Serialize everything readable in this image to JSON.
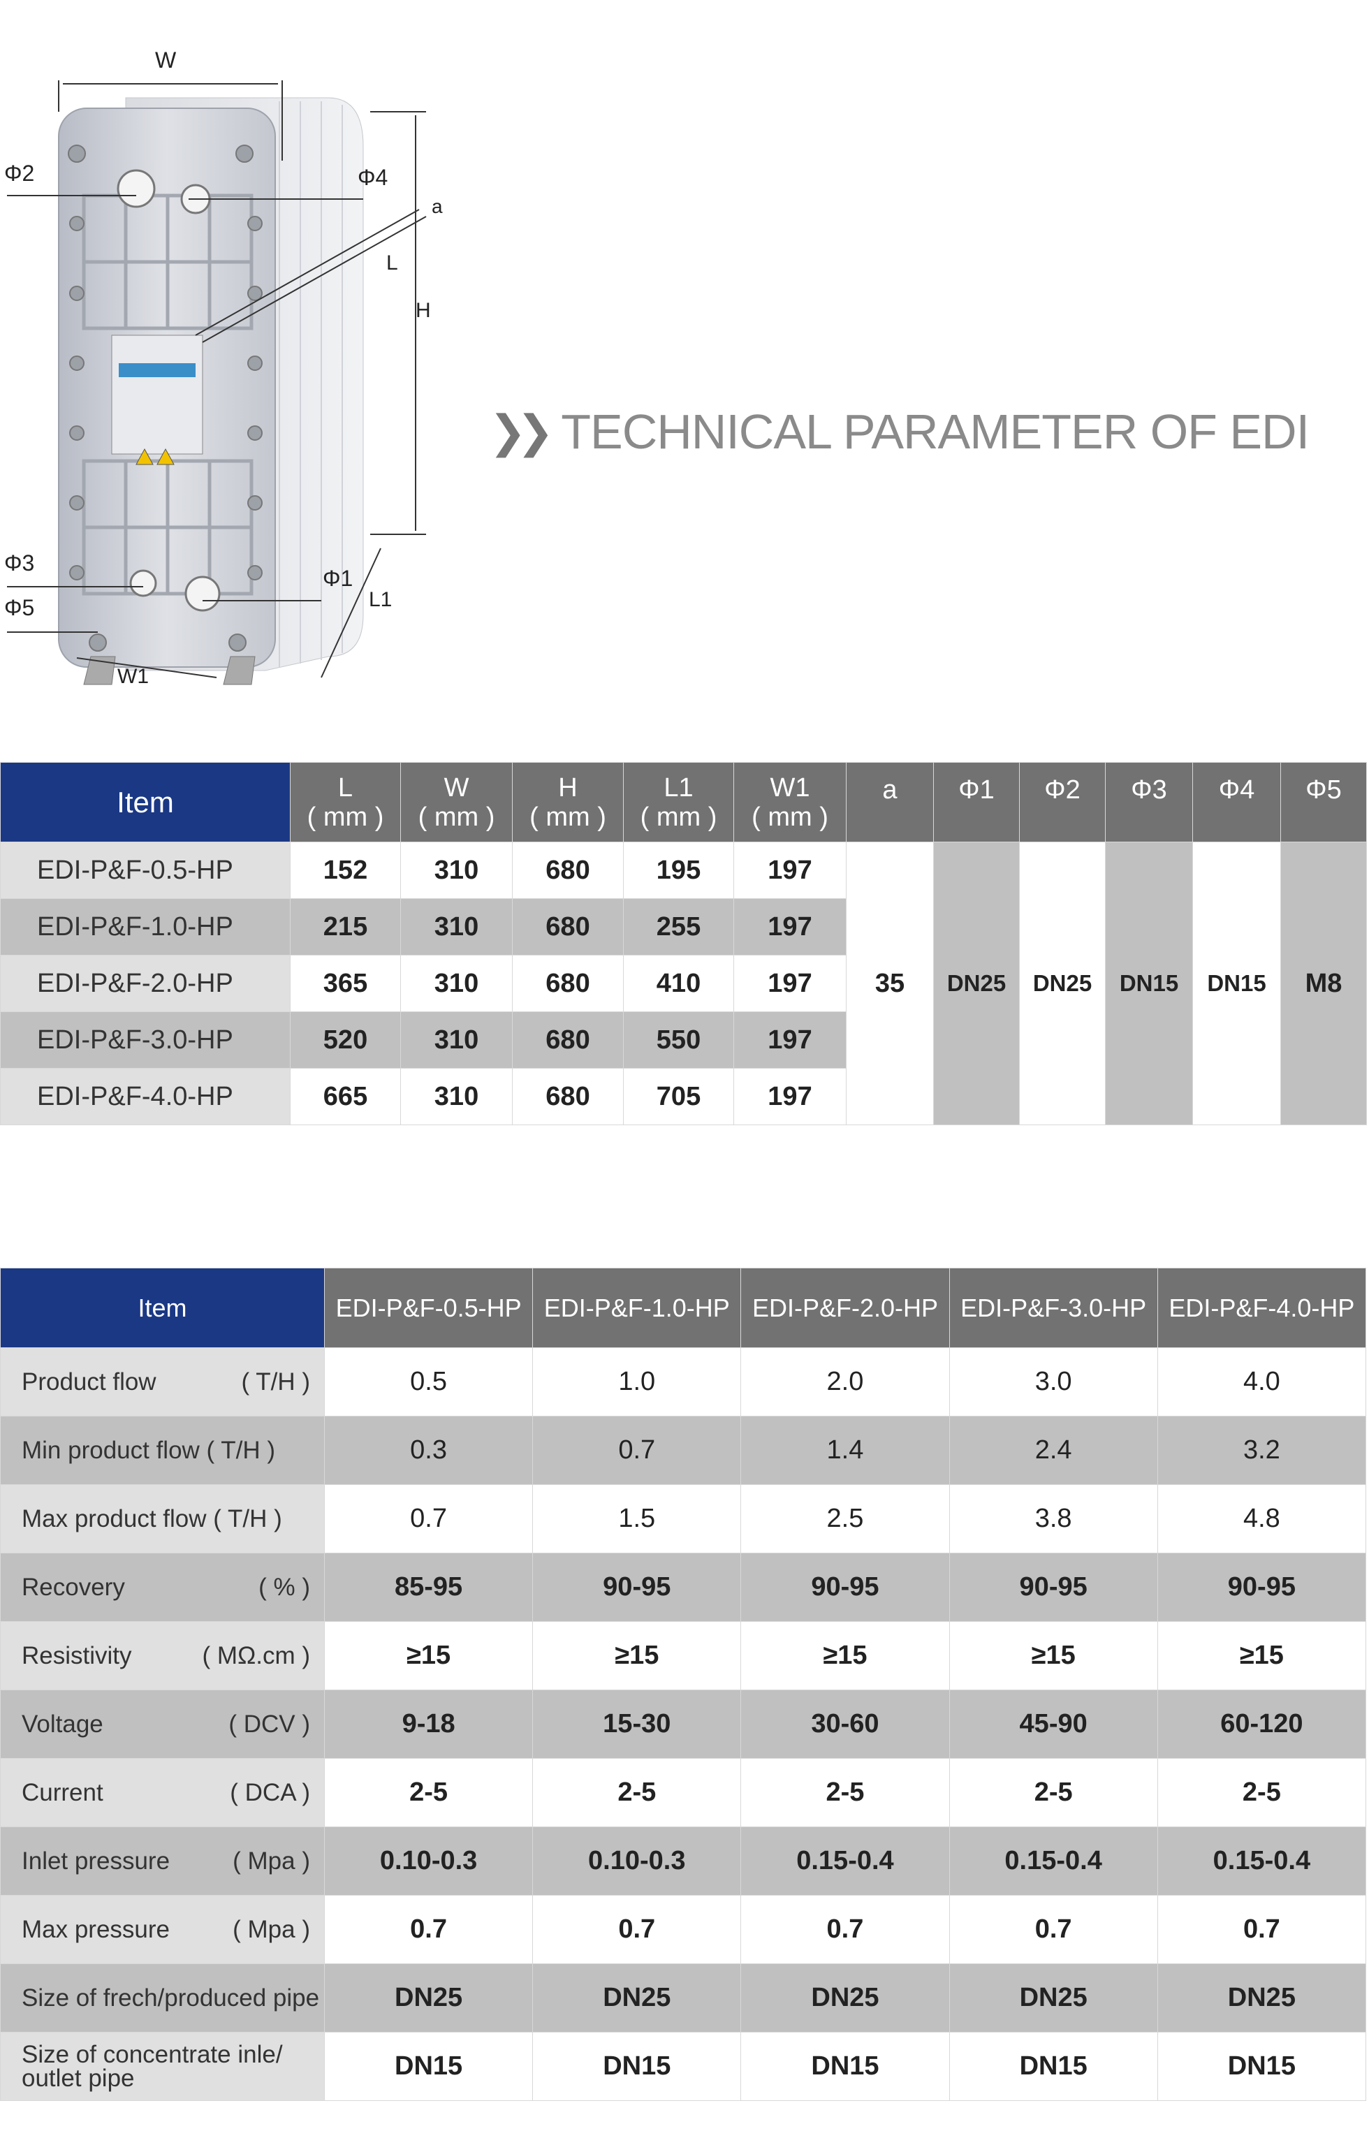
{
  "diagram": {
    "labels": {
      "W": "W",
      "phi2": "Φ2",
      "phi4": "Φ4",
      "a": "a",
      "L": "L",
      "H": "H",
      "phi3": "Φ3",
      "phi5": "Φ5",
      "phi1": "Φ1",
      "L1": "L1",
      "W1": "W1"
    }
  },
  "title": "TECHNICAL PARAMETER OF EDI",
  "dimensions_table": {
    "item_header": "Item",
    "headers": [
      {
        "name": "L",
        "unit": "( mm )"
      },
      {
        "name": "W",
        "unit": "( mm )"
      },
      {
        "name": "H",
        "unit": "( mm )"
      },
      {
        "name": "L1",
        "unit": "( mm )"
      },
      {
        "name": "W1",
        "unit": "( mm )"
      }
    ],
    "extra_headers": [
      "a",
      "Φ1",
      "Φ2",
      "Φ3",
      "Φ4",
      "Φ5"
    ],
    "rows": [
      {
        "item": "EDI-P&F-0.5-HP",
        "values": [
          "152",
          "310",
          "680",
          "195",
          "197"
        ]
      },
      {
        "item": "EDI-P&F-1.0-HP",
        "values": [
          "215",
          "310",
          "680",
          "255",
          "197"
        ]
      },
      {
        "item": "EDI-P&F-2.0-HP",
        "values": [
          "365",
          "310",
          "680",
          "410",
          "197"
        ]
      },
      {
        "item": "EDI-P&F-3.0-HP",
        "values": [
          "520",
          "310",
          "680",
          "550",
          "197"
        ]
      },
      {
        "item": "EDI-P&F-4.0-HP",
        "values": [
          "665",
          "310",
          "680",
          "705",
          "197"
        ]
      }
    ],
    "shared_values": [
      "35",
      "DN25",
      "DN25",
      "DN15",
      "DN15",
      "M8"
    ]
  },
  "parameter_table": {
    "item_header": "Item",
    "models": [
      "EDI-P&F-0.5-HP",
      "EDI-P&F-1.0-HP",
      "EDI-P&F-2.0-HP",
      "EDI-P&F-3.0-HP",
      "EDI-P&F-4.0-HP"
    ],
    "rows": [
      {
        "label": "Product flow",
        "unit": "( T/H )",
        "values": [
          "0.5",
          "1.0",
          "2.0",
          "3.0",
          "4.0"
        ]
      },
      {
        "label": "Min product flow ( T/H )",
        "unit": "",
        "values": [
          "0.3",
          "0.7",
          "1.4",
          "2.4",
          "3.2"
        ]
      },
      {
        "label": "Max product flow ( T/H )",
        "unit": "",
        "values": [
          "0.7",
          "1.5",
          "2.5",
          "3.8",
          "4.8"
        ]
      },
      {
        "label": "Recovery",
        "unit": "( % )",
        "values": [
          "85-95",
          "90-95",
          "90-95",
          "90-95",
          "90-95"
        ]
      },
      {
        "label": "Resistivity",
        "unit": "( MΩ.cm )",
        "values": [
          "≥15",
          "≥15",
          "≥15",
          "≥15",
          "≥15"
        ]
      },
      {
        "label": "Voltage",
        "unit": "( DCV )",
        "values": [
          "9-18",
          "15-30",
          "30-60",
          "45-90",
          "60-120"
        ]
      },
      {
        "label": "Current",
        "unit": "( DCA )",
        "values": [
          "2-5",
          "2-5",
          "2-5",
          "2-5",
          "2-5"
        ]
      },
      {
        "label": "Inlet pressure",
        "unit": "( Mpa )",
        "values": [
          "0.10-0.3",
          "0.10-0.3",
          "0.15-0.4",
          "0.15-0.4",
          "0.15-0.4"
        ]
      },
      {
        "label": "Max pressure",
        "unit": "( Mpa )",
        "values": [
          "0.7",
          "0.7",
          "0.7",
          "0.7",
          "0.7"
        ]
      },
      {
        "label": "Size of frech/produced pipe",
        "unit": "",
        "values": [
          "DN25",
          "DN25",
          "DN25",
          "DN25",
          "DN25"
        ]
      },
      {
        "label": "Size of concentrate inle/ outlet pipe",
        "unit": "",
        "values": [
          "DN15",
          "DN15",
          "DN15",
          "DN15",
          "DN15"
        ]
      }
    ]
  },
  "colors": {
    "header_blue": "#1a3884",
    "header_gray": "#727272",
    "row_gray": "#c0c0c0",
    "item_light": "#e0e0e0"
  }
}
